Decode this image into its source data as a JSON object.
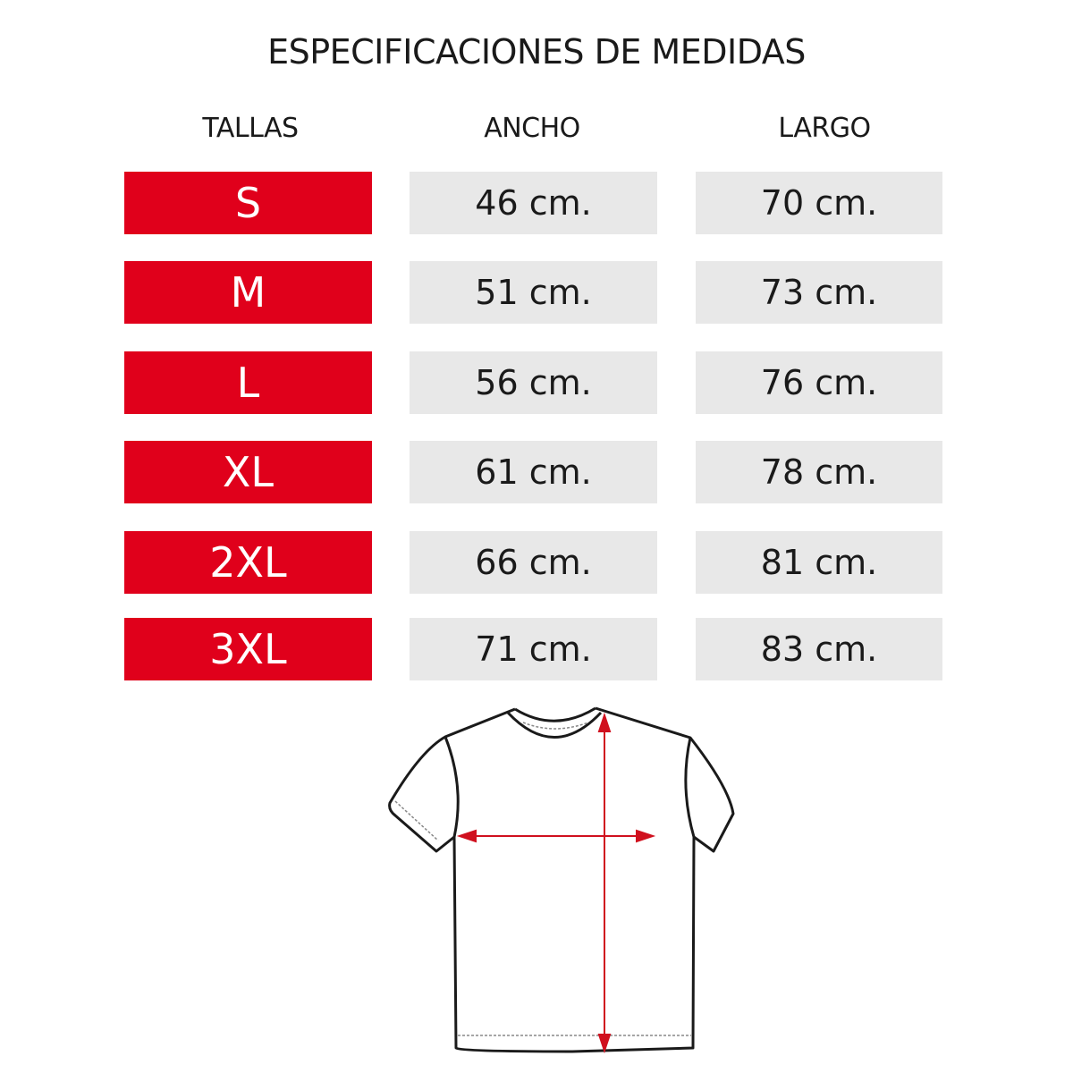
{
  "title": "ESPECIFICACIONES DE MEDIDAS",
  "headers": {
    "size": "TALLAS",
    "width": "ANCHO",
    "length": "LARGO"
  },
  "rows": [
    {
      "size": "S",
      "width": "46 cm.",
      "length": "70 cm."
    },
    {
      "size": "M",
      "width": "51 cm.",
      "length": "73 cm."
    },
    {
      "size": "L",
      "width": "56 cm.",
      "length": "76 cm."
    },
    {
      "size": "XL",
      "width": "61 cm.",
      "length": "78 cm."
    },
    {
      "size": "2XL",
      "width": "66 cm.",
      "length": "81 cm."
    },
    {
      "size": "3XL",
      "width": "71 cm.",
      "length": "83 cm."
    }
  ],
  "colors": {
    "size_bg": "#e0001b",
    "value_bg": "#e8e8e8",
    "arrow": "#d0101e"
  },
  "illustration": "t-shirt-measurement-diagram"
}
